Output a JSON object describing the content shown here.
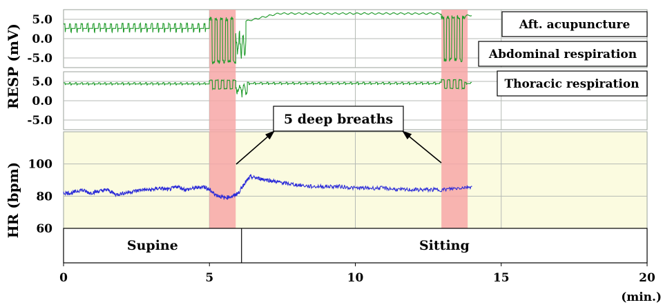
{
  "chart_data": {
    "type": "line",
    "title": "",
    "x_axis": {
      "label": "(min.)",
      "range": [
        0,
        20
      ],
      "ticks": [
        0,
        5,
        10,
        15,
        20
      ],
      "tick_labels": [
        "0",
        "5",
        "10",
        "15",
        "20"
      ]
    },
    "panels": [
      {
        "name": "abdominal",
        "ylabel": "RESP (mV)",
        "ylim": [
          -7.5,
          7.5
        ],
        "ticks": [
          5.0,
          0.0,
          -5.0
        ],
        "tick_labels": [
          "5.0",
          "0.0",
          "-5.0"
        ],
        "labels": [
          "Aft. acupuncture",
          "Abdominal respiration"
        ],
        "series": {
          "color": "#1f9a2a",
          "segments": [
            {
              "t0": 0.0,
              "t1": 5.0,
              "mode": "normal",
              "base": 2.5,
              "amp": 1.5,
              "period": 0.2
            },
            {
              "t0": 5.0,
              "t1": 5.9,
              "mode": "deep",
              "base": -0.5,
              "amp": 6.0,
              "period": 0.18
            },
            {
              "t0": 5.9,
              "t1": 6.25,
              "mode": "transition",
              "base": -1.5,
              "amp": 2.5,
              "period": 0.12
            },
            {
              "t0": 6.25,
              "t1": 12.95,
              "mode": "flat",
              "start": 4.5,
              "end": 6.5,
              "amp": 0.25,
              "period": 0.25
            },
            {
              "t0": 12.95,
              "t1": 13.75,
              "mode": "deep",
              "base": 0.0,
              "amp": 6.0,
              "period": 0.18
            },
            {
              "t0": 13.75,
              "t1": 14.0,
              "mode": "flat",
              "start": 5.5,
              "end": 6.0,
              "amp": 0.2,
              "period": 0.2
            }
          ]
        }
      },
      {
        "name": "thoracic",
        "ylabel": "RESP (mV)",
        "ylim": [
          -7.5,
          7.5
        ],
        "ticks": [
          5.0,
          0.0,
          -5.0
        ],
        "tick_labels": [
          "5.0",
          "0.0",
          "-5.0"
        ],
        "labels": [
          "Thoracic respiration"
        ],
        "series": {
          "color": "#1f9a2a",
          "segments": [
            {
              "t0": 0.0,
              "t1": 5.0,
              "mode": "normal",
              "base": 4.3,
              "amp": 0.4,
              "period": 0.2
            },
            {
              "t0": 5.0,
              "t1": 5.9,
              "mode": "deep",
              "base": 4.2,
              "amp": 1.2,
              "period": 0.2
            },
            {
              "t0": 5.9,
              "t1": 6.3,
              "mode": "transition",
              "base": 3.0,
              "amp": 1.5,
              "period": 0.15
            },
            {
              "t0": 6.3,
              "t1": 12.95,
              "mode": "normal",
              "base": 4.4,
              "amp": 0.4,
              "period": 0.22
            },
            {
              "t0": 12.95,
              "t1": 13.75,
              "mode": "deep",
              "base": 4.3,
              "amp": 1.2,
              "period": 0.2
            },
            {
              "t0": 13.75,
              "t1": 14.0,
              "mode": "normal",
              "base": 4.4,
              "amp": 0.4,
              "period": 0.2
            }
          ]
        }
      },
      {
        "name": "heart-rate",
        "ylabel": "HR (bpm)",
        "ylim": [
          60,
          120
        ],
        "ticks": [
          100,
          80,
          60
        ],
        "tick_labels": [
          "100",
          "80",
          "60"
        ],
        "series": {
          "color": "#2a2ad8",
          "points": [
            [
              0.0,
              82
            ],
            [
              0.3,
              82
            ],
            [
              0.6,
              84
            ],
            [
              0.9,
              82
            ],
            [
              1.2,
              83
            ],
            [
              1.5,
              84
            ],
            [
              1.8,
              81
            ],
            [
              2.1,
              82
            ],
            [
              2.4,
              83
            ],
            [
              2.7,
              84
            ],
            [
              3.0,
              84
            ],
            [
              3.3,
              85
            ],
            [
              3.6,
              84
            ],
            [
              3.9,
              86
            ],
            [
              4.2,
              84
            ],
            [
              4.5,
              85
            ],
            [
              4.8,
              86
            ],
            [
              5.0,
              84
            ],
            [
              5.2,
              81
            ],
            [
              5.5,
              79
            ],
            [
              5.8,
              80
            ],
            [
              6.0,
              82
            ],
            [
              6.2,
              88
            ],
            [
              6.4,
              92
            ],
            [
              6.7,
              91
            ],
            [
              7.0,
              90
            ],
            [
              7.3,
              89
            ],
            [
              7.6,
              88
            ],
            [
              8.0,
              87
            ],
            [
              8.5,
              86
            ],
            [
              9.0,
              86
            ],
            [
              9.5,
              86
            ],
            [
              10.0,
              85
            ],
            [
              10.5,
              85
            ],
            [
              11.0,
              85
            ],
            [
              11.5,
              84
            ],
            [
              12.0,
              84
            ],
            [
              12.5,
              84
            ],
            [
              13.0,
              84
            ],
            [
              13.5,
              85
            ],
            [
              14.0,
              86
            ]
          ]
        }
      }
    ],
    "highlight_intervals": [
      {
        "start": 5.0,
        "end": 5.9,
        "color": "#f7a7a7"
      },
      {
        "start": 12.95,
        "end": 13.85,
        "color": "#f7a7a7"
      }
    ],
    "annotations": {
      "deep_breaths_label": "5 deep breaths",
      "arrow_targets_min": [
        5.9,
        12.95
      ]
    },
    "posture": [
      {
        "label": "Supine",
        "start": 0.0,
        "end": 6.1
      },
      {
        "label": "Sitting",
        "start": 6.1,
        "end": 20.0
      }
    ],
    "grid": true
  }
}
